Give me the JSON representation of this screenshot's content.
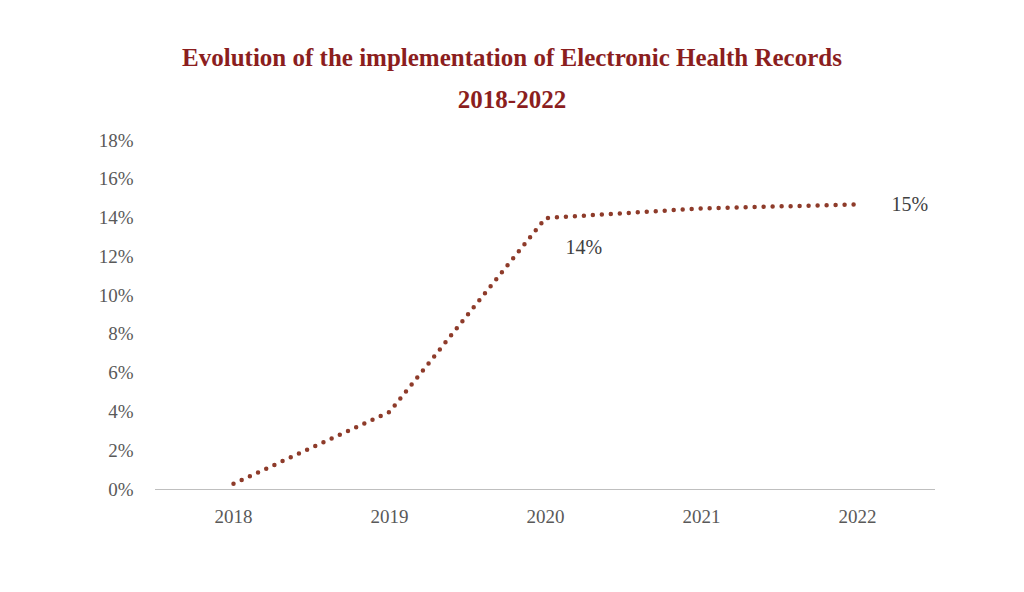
{
  "chart_data": {
    "type": "line",
    "title": "Evolution of the implementation of Electronic Health Records",
    "subtitle": "2018-2022",
    "x": [
      2018,
      2019,
      2020,
      2021,
      2022
    ],
    "values": [
      0.3,
      4,
      14,
      14.5,
      14.7
    ],
    "value_labels": [
      null,
      null,
      "14%",
      null,
      "15%"
    ],
    "data_labels": true,
    "color": "#8e3b2a",
    "line_style": "dotted",
    "xlim": [
      2017.5,
      2022.5
    ],
    "xticks": [
      2018,
      2019,
      2020,
      2021,
      2022
    ],
    "ylim": [
      0,
      18
    ],
    "yticks": [
      {
        "value": 0,
        "label": "0%"
      },
      {
        "value": 2,
        "label": "2%"
      },
      {
        "value": 4,
        "label": "4%"
      },
      {
        "value": 6,
        "label": "6%"
      },
      {
        "value": 8,
        "label": "8%"
      },
      {
        "value": 10,
        "label": "10%"
      },
      {
        "value": 12,
        "label": "12%"
      },
      {
        "value": 14,
        "label": "14%"
      },
      {
        "value": 16,
        "label": "16%"
      },
      {
        "value": 18,
        "label": "18%"
      }
    ],
    "grid": false
  }
}
